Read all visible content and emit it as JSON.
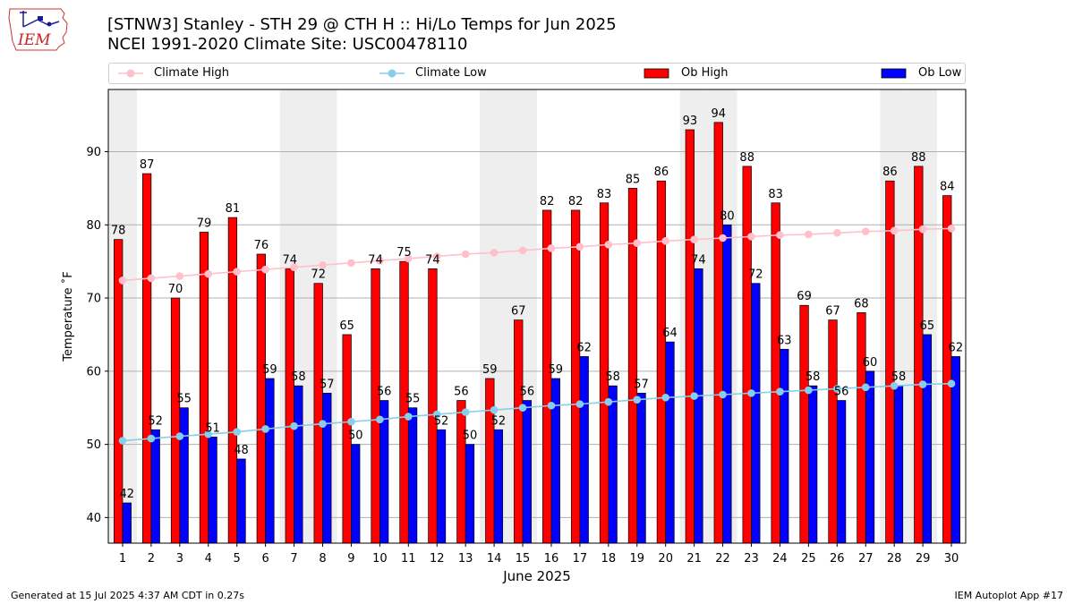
{
  "title": {
    "line1": "[STNW3] Stanley - STH 29 @ CTH H :: Hi/Lo Temps for Jun 2025",
    "line2": "NCEI 1991-2020 Climate Site: USC00478110"
  },
  "logo": {
    "text": "IEM"
  },
  "colors": {
    "ob_high": "#ff0000",
    "ob_low": "#0000ff",
    "climate_high": "#ffc0cb",
    "climate_low": "#87ceeb",
    "weekend_shade": "#eeeeee",
    "grid": "#b0b0b0"
  },
  "chart_data": {
    "type": "bar",
    "xlabel": "June 2025",
    "ylabel": "Temperature ˚F",
    "ylim": [
      36.5,
      98.5
    ],
    "yticks": [
      40,
      50,
      60,
      70,
      80,
      90
    ],
    "grid": "horizontal",
    "legend_position": "top",
    "categories": [
      "1",
      "2",
      "3",
      "4",
      "5",
      "6",
      "7",
      "8",
      "9",
      "10",
      "11",
      "12",
      "13",
      "14",
      "15",
      "16",
      "17",
      "18",
      "19",
      "20",
      "21",
      "22",
      "23",
      "24",
      "25",
      "26",
      "27",
      "28",
      "29",
      "30"
    ],
    "shaded_days": [
      1,
      7,
      8,
      14,
      15,
      21,
      22,
      28,
      29
    ],
    "series": [
      {
        "name": "Ob High",
        "kind": "bar",
        "values": [
          78,
          87,
          70,
          79,
          81,
          76,
          74,
          72,
          65,
          74,
          75,
          74,
          56,
          59,
          67,
          82,
          82,
          83,
          85,
          86,
          93,
          94,
          88,
          83,
          69,
          67,
          68,
          86,
          88,
          84
        ]
      },
      {
        "name": "Ob Low",
        "kind": "bar",
        "values": [
          42,
          52,
          55,
          51,
          48,
          59,
          58,
          57,
          50,
          56,
          55,
          52,
          50,
          52,
          56,
          59,
          62,
          58,
          57,
          64,
          74,
          80,
          72,
          63,
          58,
          56,
          60,
          58,
          65,
          62
        ]
      },
      {
        "name": "Climate High",
        "kind": "line",
        "values": [
          72.4,
          72.7,
          73.0,
          73.3,
          73.6,
          73.9,
          74.2,
          74.5,
          74.8,
          75.1,
          75.4,
          75.7,
          76.0,
          76.2,
          76.5,
          76.8,
          77.0,
          77.3,
          77.5,
          77.8,
          78.0,
          78.2,
          78.4,
          78.6,
          78.7,
          78.9,
          79.1,
          79.2,
          79.4,
          79.5
        ]
      },
      {
        "name": "Climate Low",
        "kind": "line",
        "values": [
          50.5,
          50.8,
          51.1,
          51.4,
          51.7,
          52.1,
          52.5,
          52.8,
          53.1,
          53.4,
          53.8,
          54.1,
          54.4,
          54.7,
          55.0,
          55.3,
          55.5,
          55.8,
          56.1,
          56.4,
          56.6,
          56.8,
          57.0,
          57.2,
          57.4,
          57.6,
          57.8,
          58.0,
          58.2,
          58.3
        ]
      }
    ]
  },
  "footer": {
    "left": "Generated at 15 Jul 2025 4:37 AM CDT in 0.27s",
    "right": "IEM Autoplot App #17"
  }
}
